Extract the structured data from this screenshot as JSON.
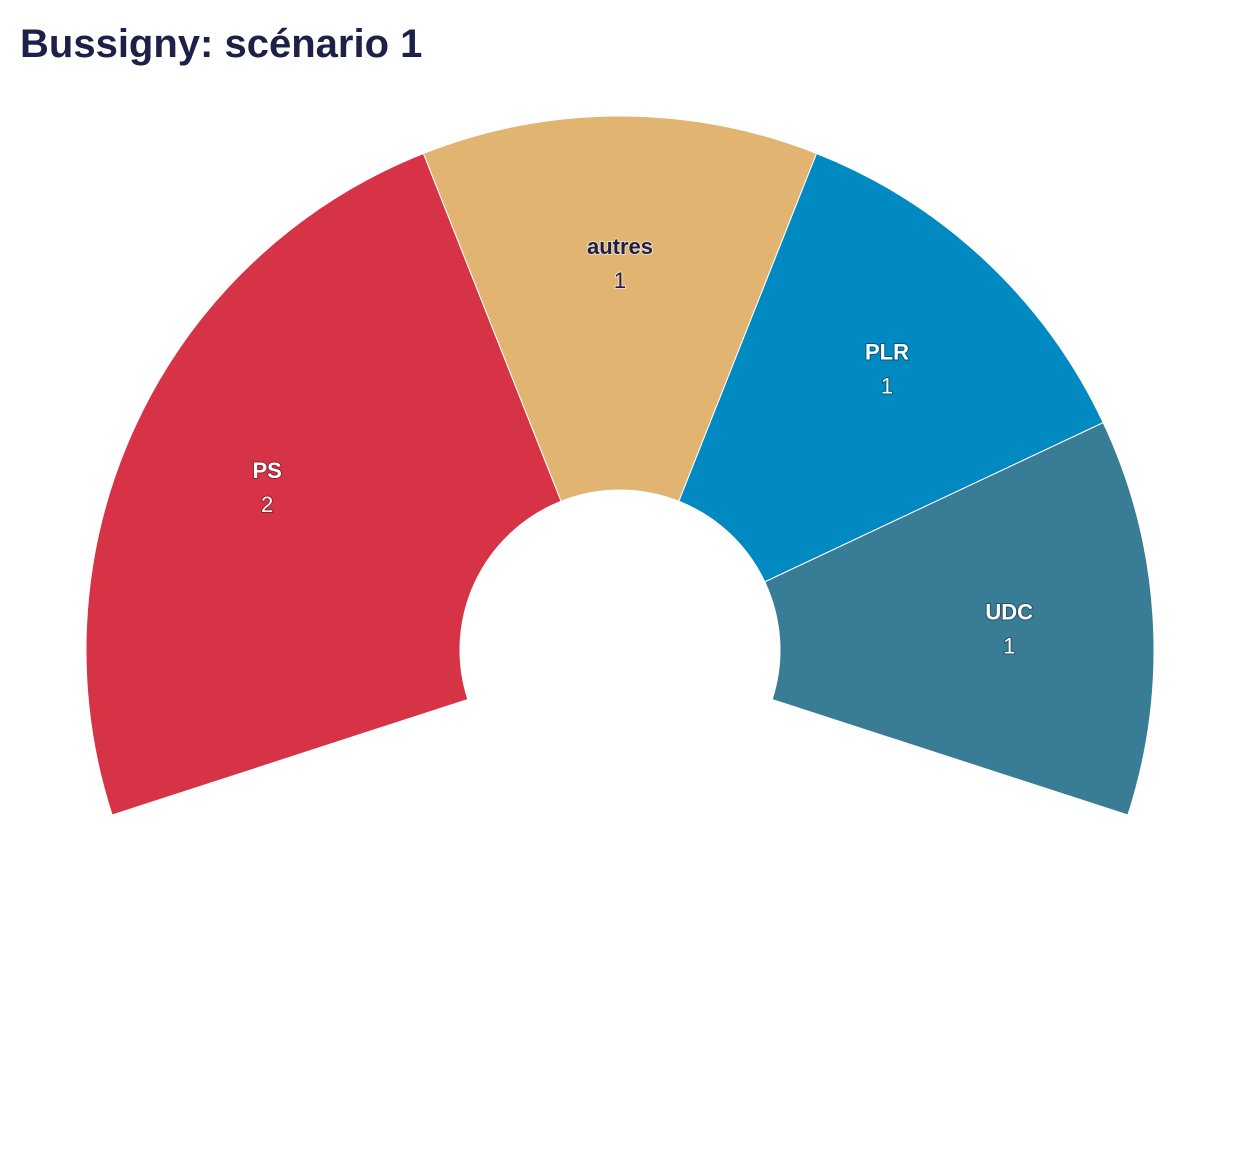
{
  "chart_data": {
    "type": "pie",
    "title": "Bussigny: scénario 1",
    "subtype": "semi-donut (parliament arc)",
    "categories": [
      "PS",
      "autres",
      "PLR",
      "UDC"
    ],
    "values": [
      2,
      1,
      1,
      1
    ],
    "colors": [
      "#d63446",
      "#e1b472",
      "#0189c1",
      "#387c96"
    ],
    "label_colors": [
      "#ffffff",
      "#1e2147",
      "#ffffff",
      "#ffffff"
    ],
    "legend": "none, labels on segments"
  }
}
